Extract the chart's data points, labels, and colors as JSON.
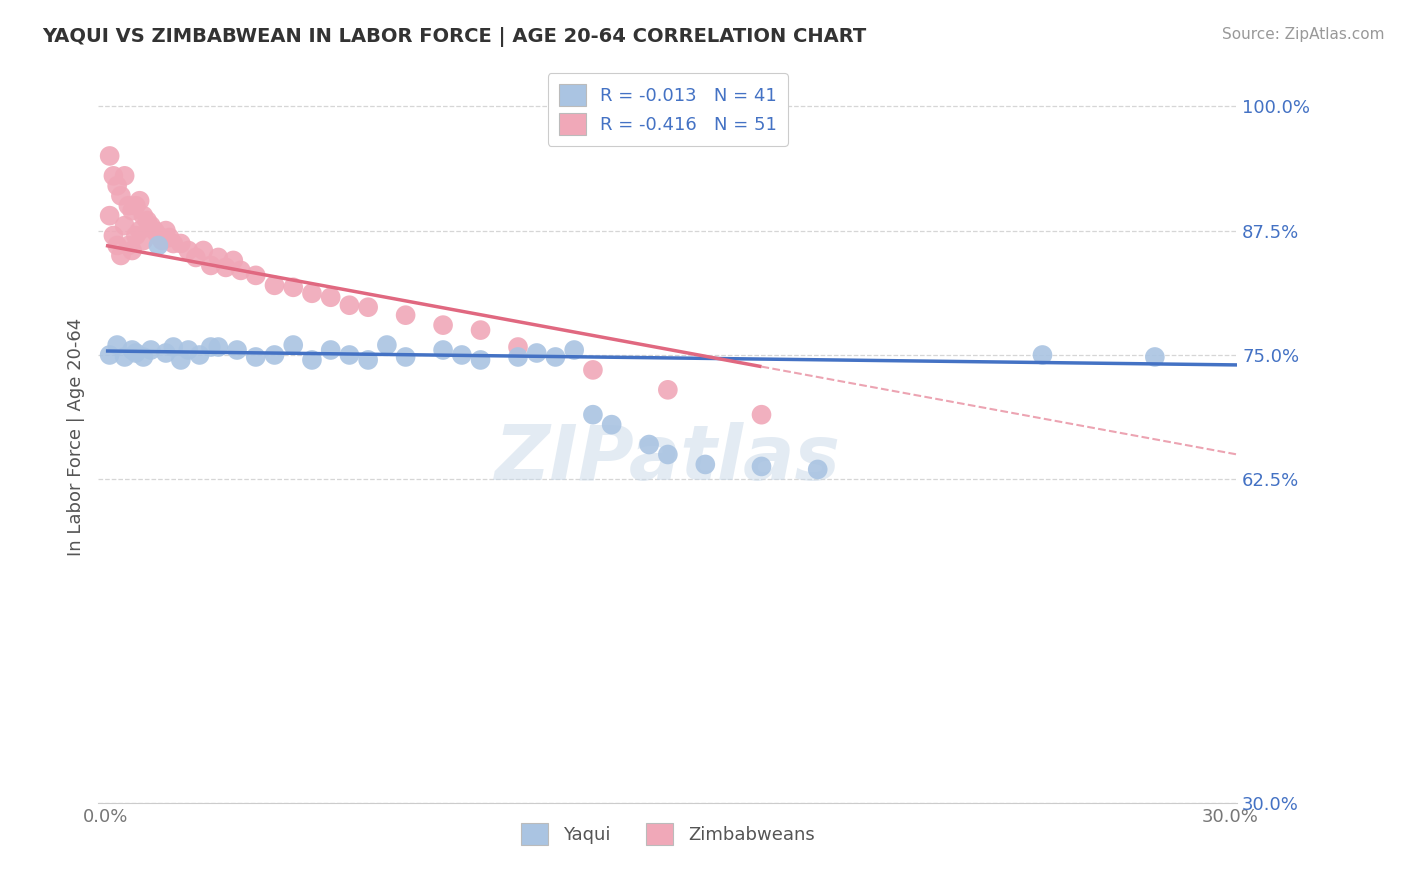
{
  "title": "YAQUI VS ZIMBABWEAN IN LABOR FORCE | AGE 20-64 CORRELATION CHART",
  "source_text": "Source: ZipAtlas.com",
  "ylabel": "In Labor Force | Age 20-64",
  "xlim": [
    -0.002,
    0.302
  ],
  "ylim": [
    0.3,
    1.035
  ],
  "ytick_labels": [
    "100.0%",
    "87.5%",
    "75.0%",
    "62.5%",
    "30.0%"
  ],
  "ytick_values": [
    1.0,
    0.875,
    0.75,
    0.625,
    0.3
  ],
  "xtick_labels": [
    "0.0%",
    "30.0%"
  ],
  "xtick_values": [
    0.0,
    0.3
  ],
  "watermark": "ZIPatlas",
  "legend_yaqui_label": "R = -0.013   N = 41",
  "legend_zimb_label": "R = -0.416   N = 51",
  "bottom_legend_labels": [
    "Yaqui",
    "Zimbabweans"
  ],
  "yaqui_color": "#aac4e2",
  "zimb_color": "#f0a8b8",
  "yaqui_line_color": "#4472c4",
  "zimb_line_color": "#e06880",
  "background_color": "#ffffff",
  "grid_color": "#cccccc",
  "title_color": "#333333",
  "source_color": "#999999",
  "yaqui_scatter_x": [
    0.001,
    0.003,
    0.005,
    0.007,
    0.008,
    0.01,
    0.012,
    0.014,
    0.016,
    0.018,
    0.02,
    0.022,
    0.025,
    0.028,
    0.03,
    0.035,
    0.04,
    0.045,
    0.05,
    0.055,
    0.06,
    0.065,
    0.07,
    0.075,
    0.08,
    0.09,
    0.095,
    0.1,
    0.11,
    0.115,
    0.12,
    0.125,
    0.13,
    0.135,
    0.145,
    0.15,
    0.16,
    0.175,
    0.19,
    0.25,
    0.28
  ],
  "yaqui_scatter_y": [
    0.75,
    0.76,
    0.748,
    0.755,
    0.752,
    0.748,
    0.755,
    0.86,
    0.752,
    0.758,
    0.745,
    0.755,
    0.75,
    0.758,
    0.758,
    0.755,
    0.748,
    0.75,
    0.76,
    0.745,
    0.755,
    0.75,
    0.745,
    0.76,
    0.748,
    0.755,
    0.75,
    0.745,
    0.748,
    0.752,
    0.748,
    0.755,
    0.69,
    0.68,
    0.66,
    0.65,
    0.64,
    0.638,
    0.635,
    0.75,
    0.748
  ],
  "zimb_scatter_x": [
    0.001,
    0.001,
    0.002,
    0.002,
    0.003,
    0.003,
    0.004,
    0.004,
    0.005,
    0.005,
    0.006,
    0.006,
    0.007,
    0.007,
    0.008,
    0.008,
    0.009,
    0.009,
    0.01,
    0.01,
    0.011,
    0.012,
    0.013,
    0.014,
    0.015,
    0.016,
    0.017,
    0.018,
    0.02,
    0.022,
    0.024,
    0.026,
    0.028,
    0.03,
    0.032,
    0.034,
    0.036,
    0.04,
    0.045,
    0.05,
    0.055,
    0.06,
    0.065,
    0.07,
    0.08,
    0.09,
    0.1,
    0.11,
    0.13,
    0.15,
    0.175
  ],
  "zimb_scatter_y": [
    0.95,
    0.89,
    0.93,
    0.87,
    0.92,
    0.86,
    0.91,
    0.85,
    0.93,
    0.88,
    0.9,
    0.86,
    0.895,
    0.855,
    0.9,
    0.87,
    0.905,
    0.875,
    0.89,
    0.865,
    0.885,
    0.88,
    0.875,
    0.87,
    0.865,
    0.875,
    0.868,
    0.862,
    0.862,
    0.855,
    0.848,
    0.855,
    0.84,
    0.848,
    0.838,
    0.845,
    0.835,
    0.83,
    0.82,
    0.818,
    0.812,
    0.808,
    0.8,
    0.798,
    0.79,
    0.78,
    0.775,
    0.758,
    0.735,
    0.715,
    0.69
  ],
  "yaqui_trend": [
    0.0,
    0.302
  ],
  "zimb_trend": [
    0.0,
    0.302
  ],
  "yaqui_trend_y": [
    0.754,
    0.74
  ],
  "zimb_trend_y": [
    0.86,
    0.65
  ]
}
